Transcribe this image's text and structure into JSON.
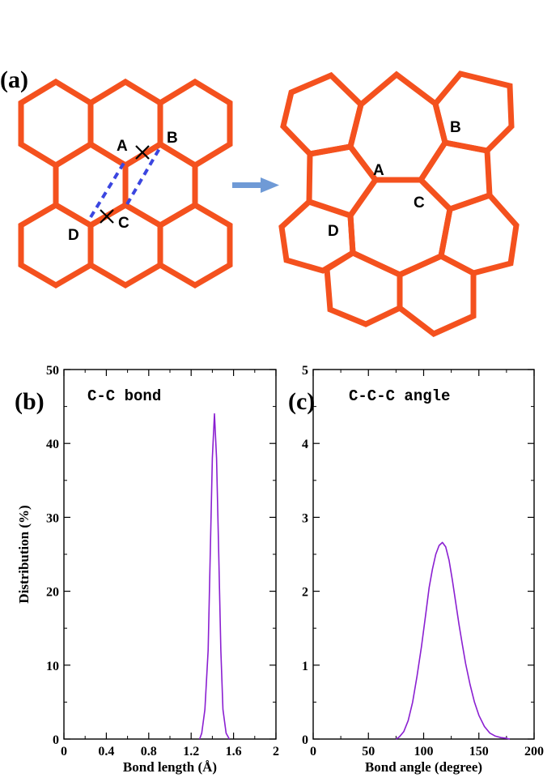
{
  "figure": {
    "panel_a_label": "(a)",
    "panel_b_label": "(b)",
    "panel_c_label": "(c)",
    "atom_labels": [
      "A",
      "B",
      "C",
      "D"
    ],
    "colors": {
      "lattice": "#f4511e",
      "dashed_bond": "#3b46e0",
      "arrow": "#6f9ad6",
      "curve": "#8a1fd1",
      "axis": "#000000"
    }
  },
  "chart_data": [
    {
      "type": "line",
      "title": "C-C bond",
      "xlabel": "Bond length (Å)",
      "ylabel": "Distribution (%)",
      "xlim": [
        0,
        2
      ],
      "ylim": [
        0,
        50
      ],
      "xticks": [
        "0",
        "0.4",
        "0.8",
        "1.2",
        "1.6",
        "2"
      ],
      "yticks": [
        "0",
        "10",
        "20",
        "30",
        "40",
        "50"
      ],
      "series": [
        {
          "x": [
            1.28,
            1.3,
            1.33,
            1.36,
            1.38,
            1.4,
            1.42,
            1.44,
            1.46,
            1.48,
            1.5,
            1.53,
            1.56
          ],
          "y": [
            0,
            0.8,
            4,
            12,
            25,
            38,
            44,
            38,
            25,
            12,
            4,
            0.8,
            0
          ]
        }
      ]
    },
    {
      "type": "line",
      "title": "C-C-C angle",
      "xlabel": "Bond angle (degree)",
      "ylabel": "",
      "xlim": [
        0,
        200
      ],
      "ylim": [
        0,
        5
      ],
      "xticks": [
        "0",
        "50",
        "100",
        "150",
        "200"
      ],
      "yticks": [
        "0",
        "1",
        "2",
        "3",
        "4",
        "5"
      ],
      "series": [
        {
          "x": [
            75,
            78,
            82,
            86,
            90,
            94,
            98,
            102,
            105,
            108,
            111,
            114,
            117,
            120,
            123,
            126,
            129,
            132,
            135,
            138,
            142,
            146,
            150,
            155,
            160,
            165,
            170,
            175,
            178
          ],
          "y": [
            0,
            0.03,
            0.1,
            0.25,
            0.5,
            0.85,
            1.25,
            1.7,
            2.05,
            2.3,
            2.5,
            2.62,
            2.66,
            2.6,
            2.42,
            2.15,
            1.85,
            1.55,
            1.28,
            1.02,
            0.74,
            0.5,
            0.32,
            0.17,
            0.08,
            0.04,
            0.02,
            0.01,
            0
          ]
        }
      ]
    }
  ]
}
